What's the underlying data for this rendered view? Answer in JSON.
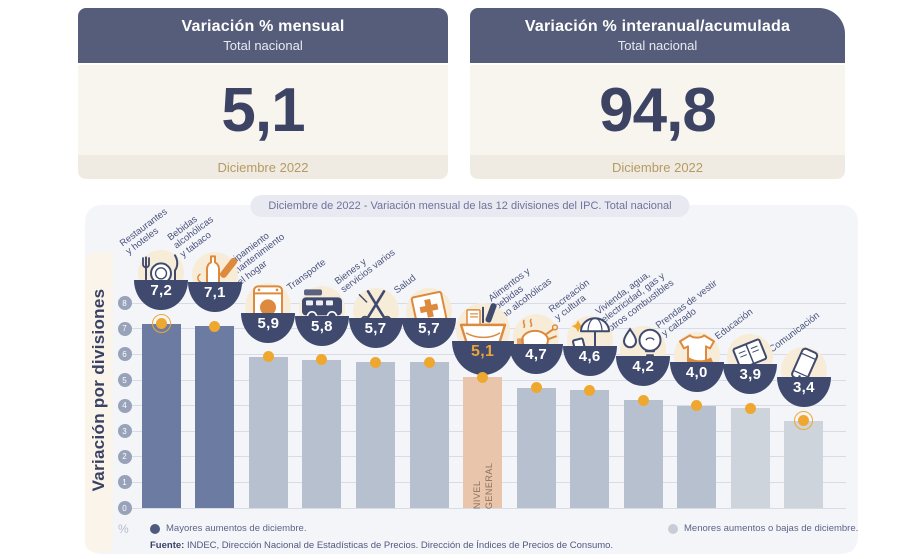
{
  "cards": [
    {
      "title": "Variación % mensual",
      "subtitle": "Total nacional",
      "value": "5,1",
      "period": "Diciembre 2022"
    },
    {
      "title": "Variación % interanual/acumulada",
      "subtitle": "Total nacional",
      "value": "94,8",
      "period": "Diciembre 2022"
    }
  ],
  "chart_data": {
    "type": "bar",
    "title": "Diciembre de 2022 - Variación mensual de las 12 divisiones del IPC. Total nacional",
    "ylabel": "Variación por divisiones",
    "y_unit": "%",
    "ylim": [
      0,
      8
    ],
    "yticks": [
      0,
      1,
      2,
      3,
      4,
      5,
      6,
      7,
      8
    ],
    "grid": true,
    "bars": [
      {
        "name": "restaurantes-y-hoteles",
        "label": "Restaurantes\ny hoteles",
        "value": 7.2,
        "display": "7,2",
        "icon": "cutlery-icon",
        "emphasis": "dark",
        "ring": true
      },
      {
        "name": "bebidas-alcoholicas-y-tabaco",
        "label": "Bebidas\nalcohólicas\ny tabaco",
        "value": 7.1,
        "display": "7,1",
        "icon": "bottles-icon",
        "emphasis": "dark",
        "ring": false
      },
      {
        "name": "equipamiento-y-mantenimiento-del-hogar",
        "label": "Equipamiento\ny mantenimiento\ndel hogar",
        "value": 5.9,
        "display": "5,9",
        "icon": "washing-machine-icon",
        "emphasis": "mid",
        "ring": false
      },
      {
        "name": "transporte",
        "label": "Transporte",
        "value": 5.8,
        "display": "5,8",
        "icon": "bus-icon",
        "emphasis": "mid",
        "ring": false
      },
      {
        "name": "bienes-y-servicios-varios",
        "label": "Bienes y\nservicios varios",
        "value": 5.7,
        "display": "5,7",
        "icon": "scissors-icon",
        "emphasis": "mid",
        "ring": false
      },
      {
        "name": "salud",
        "label": "Salud",
        "value": 5.7,
        "display": "5,7",
        "icon": "medical-cross-icon",
        "emphasis": "mid",
        "ring": false
      },
      {
        "name": "nivel-general",
        "label": "",
        "bar_text": "NIVEL\nGENERAL",
        "value": 5.1,
        "display": "5,1",
        "icon": "basket-icon",
        "emphasis": "general",
        "ring": false
      },
      {
        "name": "alimentos-y-bebidas-no-alcoholicas",
        "label": "Alimentos y\nbebidas\nno alcohólicas",
        "value": 4.7,
        "display": "4,7",
        "icon": "chicken-icon",
        "emphasis": "mid",
        "ring": false
      },
      {
        "name": "recreacion-y-cultura",
        "label": "Recreación\ny cultura",
        "value": 4.6,
        "display": "4,6",
        "icon": "beach-umbrella-icon",
        "emphasis": "mid",
        "ring": false
      },
      {
        "name": "vivienda-agua-electricidad-gas",
        "label": "Vivienda, agua,\nelectricidad, gas y\notros combustibles",
        "value": 4.2,
        "display": "4,2",
        "icon": "utilities-icon",
        "emphasis": "mid",
        "ring": false
      },
      {
        "name": "prendas-de-vestir-y-calzado",
        "label": "Prendas de vestir\ny calzado",
        "value": 4.0,
        "display": "4,0",
        "icon": "tshirt-icon",
        "emphasis": "mid",
        "ring": false
      },
      {
        "name": "educacion",
        "label": "Educación",
        "value": 3.9,
        "display": "3,9",
        "icon": "books-icon",
        "emphasis": "light",
        "ring": false
      },
      {
        "name": "comunicacion",
        "label": "Comunicación",
        "value": 3.4,
        "display": "3,4",
        "icon": "phone-icon",
        "emphasis": "light",
        "ring": true
      }
    ],
    "legend": [
      {
        "label": "Mayores aumentos de diciembre.",
        "dot_color": "#4f5a7e"
      },
      {
        "label": "Menores aumentos o bajas de diciembre.",
        "dot_color": "#c7cdd6"
      }
    ]
  },
  "footer": {
    "prefix": "Fuente:",
    "text": " INDEC, Dirección Nacional de Estadísticas de Precios. Dirección de Índices de Precios de Consumo."
  },
  "colors": {
    "dark_bar": "#6b7ba1",
    "mid_bar": "#b7c0cf",
    "light_bar": "#ced4dc",
    "general_bar": "#e9c6ab",
    "badge": "#3f4a6e",
    "dot": "#efa82f",
    "accent_text": "#e8a33d",
    "header": "#565d7a",
    "big_number": "#3d4463",
    "period_text": "#b59a62"
  }
}
